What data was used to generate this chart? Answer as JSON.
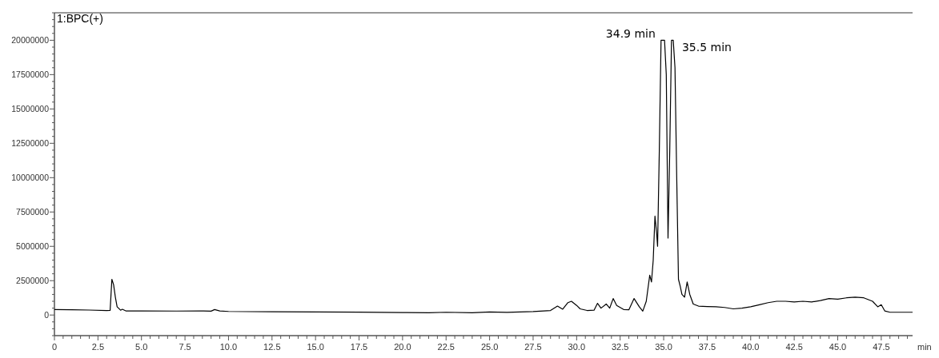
{
  "chart_data": {
    "type": "line",
    "title": "1:BPC(+)",
    "xlabel": "min",
    "xlim": [
      0,
      49.3
    ],
    "ylim": [
      -1500000,
      22000000
    ],
    "xticks": [
      0,
      {
        "value": 0.5,
        "label": null
      },
      {
        "value": 1,
        "label": null
      },
      {
        "value": 1.5,
        "label": null
      },
      {
        "value": 2,
        "label": null
      },
      {
        "value": 2.5,
        "label": "2.5"
      },
      {
        "value": 3,
        "label": null
      },
      {
        "value": 3.5,
        "label": null
      },
      {
        "value": 4,
        "label": null
      },
      {
        "value": 4.5,
        "label": null
      },
      {
        "value": 5,
        "label": "5.0"
      },
      {
        "value": 5.5,
        "label": null
      },
      {
        "value": 6,
        "label": null
      },
      {
        "value": 6.5,
        "label": null
      },
      {
        "value": 7,
        "label": null
      },
      {
        "value": 7.5,
        "label": "7.5"
      },
      {
        "value": 8,
        "label": null
      },
      {
        "value": 8.5,
        "label": null
      },
      {
        "value": 9,
        "label": null
      },
      {
        "value": 9.5,
        "label": null
      },
      {
        "value": 10,
        "label": "10.0"
      },
      {
        "value": 10.5,
        "label": null
      },
      {
        "value": 11,
        "label": null
      },
      {
        "value": 11.5,
        "label": null
      },
      {
        "value": 12,
        "label": null
      },
      {
        "value": 12.5,
        "label": "12.5"
      },
      {
        "value": 13,
        "label": null
      },
      {
        "value": 13.5,
        "label": null
      },
      {
        "value": 14,
        "label": null
      },
      {
        "value": 14.5,
        "label": null
      },
      {
        "value": 15,
        "label": "15.0"
      },
      {
        "value": 15.5,
        "label": null
      },
      {
        "value": 16,
        "label": null
      },
      {
        "value": 16.5,
        "label": null
      },
      {
        "value": 17,
        "label": null
      },
      {
        "value": 17.5,
        "label": "17.5"
      },
      {
        "value": 18,
        "label": null
      },
      {
        "value": 18.5,
        "label": null
      },
      {
        "value": 19,
        "label": null
      },
      {
        "value": 19.5,
        "label": null
      },
      {
        "value": 20,
        "label": "20.0"
      },
      {
        "value": 20.5,
        "label": null
      },
      {
        "value": 21,
        "label": null
      },
      {
        "value": 21.5,
        "label": null
      },
      {
        "value": 22,
        "label": null
      },
      {
        "value": 22.5,
        "label": "22.5"
      },
      {
        "value": 23,
        "label": null
      },
      {
        "value": 23.5,
        "label": null
      },
      {
        "value": 24,
        "label": null
      },
      {
        "value": 24.5,
        "label": null
      },
      {
        "value": 25,
        "label": "25.0"
      },
      {
        "value": 25.5,
        "label": null
      },
      {
        "value": 26,
        "label": null
      },
      {
        "value": 26.5,
        "label": null
      },
      {
        "value": 27,
        "label": null
      },
      {
        "value": 27.5,
        "label": "27.5"
      },
      {
        "value": 28,
        "label": null
      },
      {
        "value": 28.5,
        "label": null
      },
      {
        "value": 29,
        "label": null
      },
      {
        "value": 29.5,
        "label": null
      },
      {
        "value": 30,
        "label": "30.0"
      },
      {
        "value": 30.5,
        "label": null
      },
      {
        "value": 31,
        "label": null
      },
      {
        "value": 31.5,
        "label": null
      },
      {
        "value": 32,
        "label": null
      },
      {
        "value": 32.5,
        "label": "32.5"
      },
      {
        "value": 33,
        "label": null
      },
      {
        "value": 33.5,
        "label": null
      },
      {
        "value": 34,
        "label": null
      },
      {
        "value": 34.5,
        "label": null
      },
      {
        "value": 35,
        "label": "35.0"
      },
      {
        "value": 35.5,
        "label": null
      },
      {
        "value": 36,
        "label": null
      },
      {
        "value": 36.5,
        "label": null
      },
      {
        "value": 37,
        "label": null
      },
      {
        "value": 37.5,
        "label": "37.5"
      },
      {
        "value": 38,
        "label": null
      },
      {
        "value": 38.5,
        "label": null
      },
      {
        "value": 39,
        "label": null
      },
      {
        "value": 39.5,
        "label": null
      },
      {
        "value": 40,
        "label": "40.0"
      },
      {
        "value": 40.5,
        "label": null
      },
      {
        "value": 41,
        "label": null
      },
      {
        "value": 41.5,
        "label": null
      },
      {
        "value": 42,
        "label": null
      },
      {
        "value": 42.5,
        "label": "42.5"
      },
      {
        "value": 43,
        "label": null
      },
      {
        "value": 43.5,
        "label": null
      },
      {
        "value": 44,
        "label": null
      },
      {
        "value": 44.5,
        "label": null
      },
      {
        "value": 45,
        "label": "45.0"
      },
      {
        "value": 45.5,
        "label": null
      },
      {
        "value": 46,
        "label": null
      },
      {
        "value": 46.5,
        "label": null
      },
      {
        "value": 47,
        "label": null
      },
      {
        "value": 47.5,
        "label": "47.5"
      },
      {
        "value": 48,
        "label": null
      },
      {
        "value": 48.5,
        "label": null
      },
      {
        "value": 49,
        "label": null
      }
    ],
    "yticks": [
      {
        "value": -1500000,
        "label": null
      },
      {
        "value": -1000000,
        "label": null
      },
      {
        "value": -500000,
        "label": null
      },
      0,
      {
        "value": 500000,
        "label": null
      },
      {
        "value": 1000000,
        "label": null
      },
      {
        "value": 1500000,
        "label": null
      },
      {
        "value": 2000000,
        "label": null
      },
      2500000,
      {
        "value": 3000000,
        "label": null
      },
      {
        "value": 3500000,
        "label": null
      },
      {
        "value": 4000000,
        "label": null
      },
      {
        "value": 4500000,
        "label": null
      },
      5000000,
      {
        "value": 5500000,
        "label": null
      },
      {
        "value": 6000000,
        "label": null
      },
      {
        "value": 6500000,
        "label": null
      },
      {
        "value": 7000000,
        "label": null
      },
      7500000,
      {
        "value": 8000000,
        "label": null
      },
      {
        "value": 8500000,
        "label": null
      },
      {
        "value": 9000000,
        "label": null
      },
      {
        "value": 9500000,
        "label": null
      },
      10000000,
      {
        "value": 10500000,
        "label": null
      },
      {
        "value": 11000000,
        "label": null
      },
      {
        "value": 11500000,
        "label": null
      },
      {
        "value": 12000000,
        "label": null
      },
      12500000,
      {
        "value": 13000000,
        "label": null
      },
      {
        "value": 13500000,
        "label": null
      },
      {
        "value": 14000000,
        "label": null
      },
      {
        "value": 14500000,
        "label": null
      },
      15000000,
      {
        "value": 15500000,
        "label": null
      },
      {
        "value": 16000000,
        "label": null
      },
      {
        "value": 16500000,
        "label": null
      },
      {
        "value": 17000000,
        "label": null
      },
      17500000,
      {
        "value": 18000000,
        "label": null
      },
      {
        "value": 18500000,
        "label": null
      },
      {
        "value": 19000000,
        "label": null
      },
      {
        "value": 19500000,
        "label": null
      },
      20000000,
      {
        "value": 20500000,
        "label": null
      },
      {
        "value": 21000000,
        "label": null
      },
      {
        "value": 21500000,
        "label": null
      },
      {
        "value": 22000000,
        "label": null
      }
    ],
    "grid": false,
    "marker": "none",
    "line_style": "solid",
    "annotations": [
      {
        "text": "34.9 min",
        "x": 34.9,
        "y": 20000000
      },
      {
        "text": "35.5 min",
        "x": 35.5,
        "y": 20000000
      }
    ],
    "series": [
      {
        "color": "#000000",
        "x": [
          0,
          1,
          2,
          3,
          3.2,
          3.3,
          3.4,
          3.5,
          3.6,
          3.8,
          3.9,
          4.1,
          5,
          7,
          8.4,
          9,
          9.2,
          9.5,
          10,
          12.5,
          15,
          17.5,
          20,
          21.5,
          22.5,
          24,
          25,
          26,
          27.5,
          28.5,
          28.9,
          29.2,
          29.5,
          29.7,
          30,
          30.2,
          30.6,
          31,
          31.2,
          31.4,
          31.7,
          31.9,
          32.1,
          32.3,
          32.7,
          33,
          33.3,
          33.6,
          33.8,
          34,
          34.2,
          34.3,
          34.4,
          34.5,
          34.6,
          34.65,
          34.75,
          34.85,
          35.05,
          35.15,
          35.25,
          35.35,
          35.45,
          35.55,
          35.65,
          35.75,
          35.85,
          35.95,
          36.05,
          36.2,
          36.35,
          36.5,
          36.7,
          37,
          37.5,
          38,
          38.5,
          39,
          39.5,
          40,
          40.5,
          41,
          41.5,
          42,
          42.5,
          43,
          43.5,
          44,
          44.5,
          45,
          45.5,
          46,
          46.5,
          47,
          47.3,
          47.5,
          47.7,
          48,
          49,
          49.3
        ],
        "values": [
          400000,
          380000,
          360000,
          330000,
          340000,
          2600000,
          2200000,
          1300000,
          600000,
          350000,
          420000,
          300000,
          300000,
          290000,
          300000,
          280000,
          400000,
          300000,
          260000,
          240000,
          220000,
          210000,
          180000,
          170000,
          200000,
          170000,
          220000,
          190000,
          250000,
          330000,
          650000,
          420000,
          900000,
          1000000,
          700000,
          450000,
          330000,
          350000,
          850000,
          500000,
          800000,
          500000,
          1200000,
          700000,
          400000,
          380000,
          1200000,
          600000,
          280000,
          1000000,
          2900000,
          2400000,
          4000000,
          7200000,
          5900000,
          5000000,
          12000000,
          20000000,
          20000000,
          17500000,
          5600000,
          12000000,
          20000000,
          20000000,
          18000000,
          10000000,
          2600000,
          2100000,
          1500000,
          1300000,
          2400000,
          1500000,
          800000,
          650000,
          620000,
          600000,
          550000,
          450000,
          500000,
          600000,
          750000,
          900000,
          1000000,
          1000000,
          950000,
          1000000,
          950000,
          1050000,
          1200000,
          1150000,
          1250000,
          1300000,
          1250000,
          1000000,
          600000,
          750000,
          300000,
          200000,
          200000,
          200000
        ]
      }
    ]
  }
}
